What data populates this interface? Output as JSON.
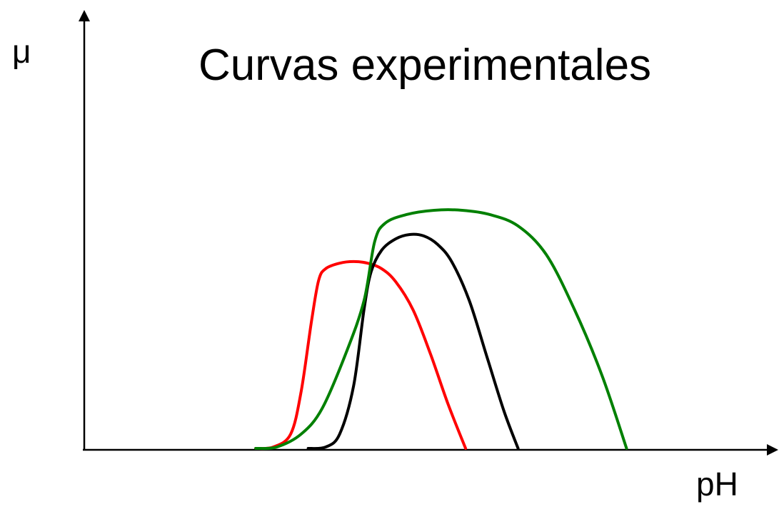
{
  "chart_data": {
    "type": "line",
    "title": "Curvas experimentales",
    "xlabel": "pH",
    "ylabel": "μ",
    "xlim": [
      0,
      100
    ],
    "ylim": [
      0,
      100
    ],
    "grid": false,
    "legend": "none",
    "ticks": "none",
    "series": [
      {
        "color": "#ff0000",
        "points": [
          [
            24.5,
            0
          ],
          [
            27.0,
            0.6
          ],
          [
            29.5,
            6.2
          ],
          [
            31.0,
            24.7
          ],
          [
            32.5,
            55.6
          ],
          [
            33.5,
            72.8
          ],
          [
            34.5,
            77.8
          ],
          [
            36.5,
            80.2
          ],
          [
            38.5,
            80.9
          ],
          [
            40.5,
            80.2
          ],
          [
            42.5,
            77.8
          ],
          [
            44.5,
            72.2
          ],
          [
            47.0,
            59.9
          ],
          [
            49.5,
            40.7
          ],
          [
            52.0,
            19.1
          ],
          [
            54.5,
            0
          ]
        ]
      },
      {
        "color": "#000000",
        "points": [
          [
            32.0,
            0
          ],
          [
            34.5,
            0.6
          ],
          [
            36.5,
            6.2
          ],
          [
            38.5,
            27.2
          ],
          [
            40.0,
            60.5
          ],
          [
            41.0,
            76.5
          ],
          [
            42.5,
            85.8
          ],
          [
            44.5,
            90.7
          ],
          [
            46.5,
            92.6
          ],
          [
            48.5,
            92.0
          ],
          [
            50.5,
            88.3
          ],
          [
            52.5,
            80.9
          ],
          [
            55.0,
            64.2
          ],
          [
            57.5,
            40.1
          ],
          [
            60.0,
            16.0
          ],
          [
            62.0,
            0
          ]
        ]
      },
      {
        "color": "#008000",
        "points": [
          [
            24.5,
            0
          ],
          [
            27.5,
            0.6
          ],
          [
            31.0,
            6.2
          ],
          [
            34.0,
            17.3
          ],
          [
            37.5,
            42.0
          ],
          [
            40.0,
            64.2
          ],
          [
            41.5,
            89.5
          ],
          [
            43.0,
            97.5
          ],
          [
            46.0,
            101.2
          ],
          [
            50.0,
            103.1
          ],
          [
            54.0,
            103.1
          ],
          [
            58.0,
            101.2
          ],
          [
            62.0,
            96.3
          ],
          [
            66.0,
            84.0
          ],
          [
            70.0,
            60.5
          ],
          [
            74.0,
            31.5
          ],
          [
            77.5,
            0
          ]
        ]
      }
    ]
  }
}
